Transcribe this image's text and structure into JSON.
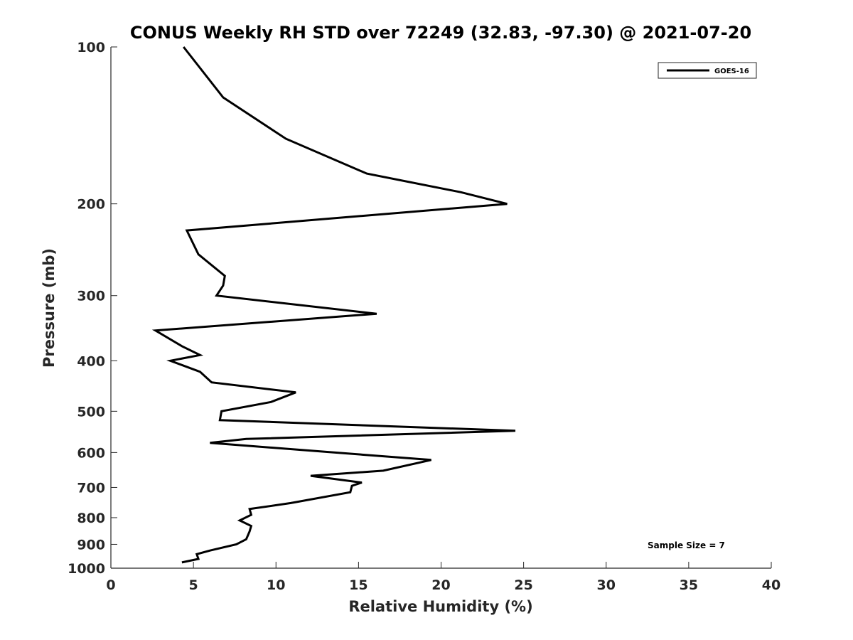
{
  "chart_data": {
    "type": "line",
    "title": "CONUS Weekly RH STD over 72249 (32.83, -97.30) @ 2021-07-20",
    "xlabel": "Relative Humidity (%)",
    "ylabel": "Pressure (mb)",
    "xlim": [
      0,
      40
    ],
    "ylim": [
      100,
      1000
    ],
    "y_scale": "log",
    "y_reversed": true,
    "xticks": [
      0,
      5,
      10,
      15,
      20,
      25,
      30,
      35,
      40
    ],
    "xtick_labels": [
      "0",
      "5",
      "10",
      "15",
      "20",
      "25",
      "30",
      "35",
      "40"
    ],
    "yticks": [
      100,
      200,
      300,
      400,
      500,
      600,
      700,
      800,
      900,
      1000
    ],
    "ytick_labels": [
      "100",
      "200",
      "300",
      "400",
      "500",
      "600",
      "700",
      "800",
      "900",
      "1000"
    ],
    "grid": false,
    "legend_position": "top-right",
    "series": [
      {
        "name": "GOES-16",
        "color": "#000000",
        "x": [
          4.4,
          6.8,
          10.6,
          15.5,
          21.2,
          24.0,
          4.6,
          5.3,
          6.9,
          6.8,
          6.4,
          16.1,
          2.7,
          4.3,
          5.4,
          3.6,
          5.4,
          6.1,
          11.2,
          9.7,
          6.7,
          6.6,
          24.5,
          8.2,
          6.0,
          19.4,
          16.5,
          12.1,
          15.2,
          14.6,
          14.5,
          10.9,
          8.4,
          8.5,
          7.8,
          8.5,
          8.4,
          8.2,
          7.6,
          6.0,
          5.2,
          5.3,
          4.3
        ],
        "y": [
          100,
          125,
          150,
          175,
          190,
          200,
          225,
          250,
          275,
          287,
          300,
          325,
          350,
          375,
          390,
          400,
          420,
          440,
          460,
          480,
          500,
          520,
          545,
          565,
          575,
          620,
          650,
          665,
          685,
          695,
          715,
          750,
          770,
          790,
          810,
          830,
          850,
          880,
          900,
          925,
          940,
          960,
          975
        ]
      }
    ],
    "annotations": [
      "Sample Size = 7"
    ]
  }
}
